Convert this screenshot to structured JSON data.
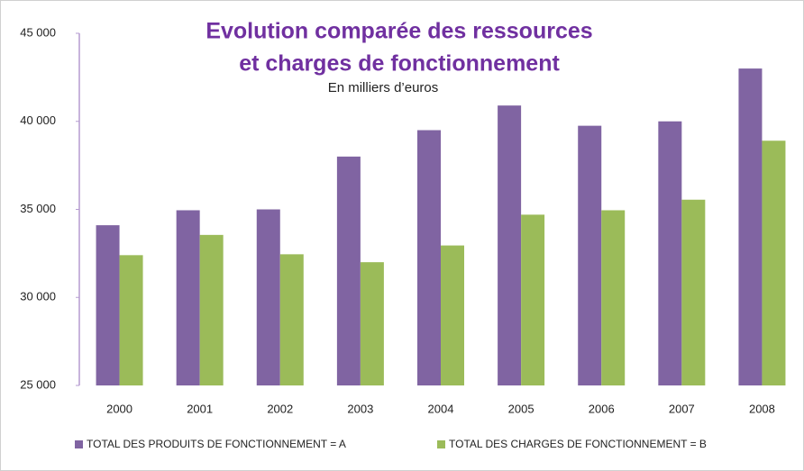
{
  "chart_data": {
    "type": "bar",
    "title": [
      "Evolution comparée des ressources",
      "et charges de fonctionnement"
    ],
    "subtitle": "En milliers d’euros",
    "categories": [
      "2000",
      "2001",
      "2002",
      "2003",
      "2004",
      "2005",
      "2006",
      "2007",
      "2008"
    ],
    "series": [
      {
        "name": "TOTAL DES PRODUITS DE FONCTIONNEMENT = A",
        "color": "#8064a2",
        "values": [
          34100,
          34950,
          35000,
          38000,
          39500,
          40900,
          39750,
          40000,
          43000
        ]
      },
      {
        "name": "TOTAL DES CHARGES DE FONCTIONNEMENT = B",
        "color": "#9bbb59",
        "values": [
          32400,
          33550,
          32450,
          32000,
          32950,
          34700,
          34950,
          35550,
          38900
        ]
      }
    ],
    "ylim": [
      25000,
      45000
    ],
    "yticks": [
      {
        "value": 25000,
        "label": "25 000"
      },
      {
        "value": 30000,
        "label": "30 000"
      },
      {
        "value": 35000,
        "label": "35 000"
      },
      {
        "value": 40000,
        "label": "40 000"
      },
      {
        "value": 45000,
        "label": "45 000"
      }
    ],
    "legend": "bottom"
  }
}
